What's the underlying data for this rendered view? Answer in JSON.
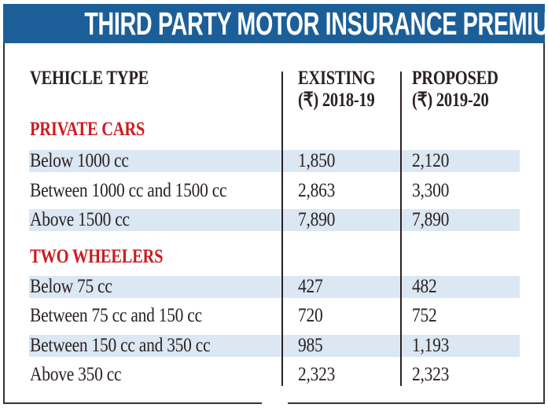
{
  "title": "THIRD PARTY MOTOR INSURANCE PREMIUM",
  "colors": {
    "header_bg": "#1c5f98",
    "section_text": "#cc1b20",
    "stripe": "#dbe7f3"
  },
  "columns": {
    "vehicle_type": "VEHICLE TYPE",
    "existing_line1": "EXISTING",
    "existing_line2": "(₹) 2018-19",
    "proposed_line1": "PROPOSED",
    "proposed_line2": "(₹) 2019-20"
  },
  "sections": [
    {
      "name": "PRIVATE CARS",
      "rows": [
        {
          "type": "Below 1000 cc",
          "existing": "1,850",
          "proposed": "2,120"
        },
        {
          "type": "Between 1000 cc and 1500 cc",
          "existing": "2,863",
          "proposed": "3,300"
        },
        {
          "type": "Above 1500 cc",
          "existing": "7,890",
          "proposed": "7,890"
        }
      ]
    },
    {
      "name": "TWO WHEELERS",
      "rows": [
        {
          "type": "Below 75 cc",
          "existing": "427",
          "proposed": "482"
        },
        {
          "type": "Between 75 cc and 150 cc",
          "existing": "720",
          "proposed": "752"
        },
        {
          "type": "Between 150 cc and 350 cc",
          "existing": "985",
          "proposed": "1,193"
        },
        {
          "type": "Above 350 cc",
          "existing": "2,323",
          "proposed": "2,323"
        }
      ]
    }
  ]
}
